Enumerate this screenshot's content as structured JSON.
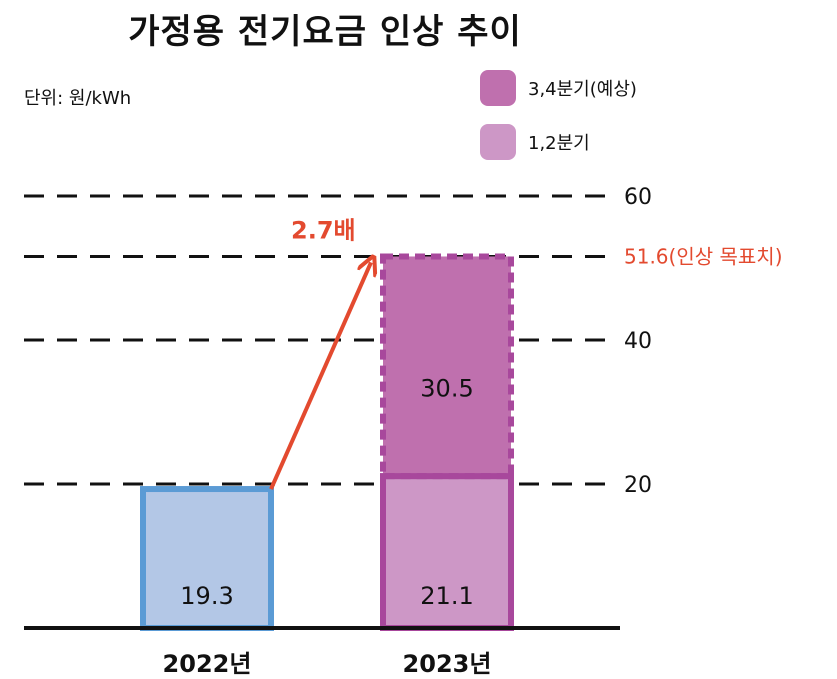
{
  "chart_data": {
    "type": "bar",
    "title": "가정용 전기요금 인상 추이",
    "unit": "단위: 원/kWh",
    "categories": [
      "2022년",
      "2023년"
    ],
    "series": [
      {
        "name": "1,2분기",
        "values": [
          19.3,
          21.1
        ],
        "colors": [
          "#b3c7e6",
          "#cd97c6"
        ],
        "borders": [
          "#5b9bd5",
          "#a8489c"
        ]
      },
      {
        "name": "3,4분기(예상)",
        "values": [
          null,
          30.5
        ],
        "color": "#bf70ae",
        "border": "#a8489c",
        "dashed": true
      }
    ],
    "yticks": [
      "20",
      "40",
      "60"
    ],
    "ylim": [
      0,
      60
    ],
    "target": {
      "value": 51.6,
      "label": "51.6(인상 목표치)",
      "color": "#e34a2f"
    },
    "annotation": {
      "text": "2.7배",
      "color": "#e34a2f"
    },
    "legend": [
      {
        "label": "3,4분기(예상)",
        "color": "#bf70ae"
      },
      {
        "label": "1,2분기",
        "color": "#cd97c6"
      }
    ]
  }
}
